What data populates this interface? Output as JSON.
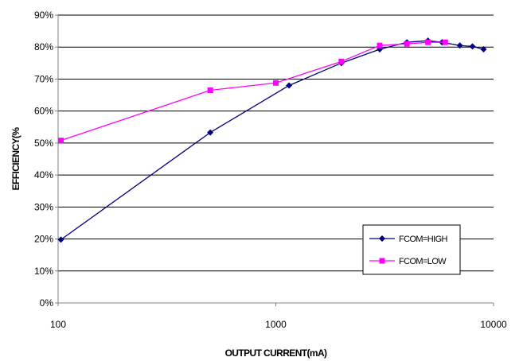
{
  "chart_data": {
    "type": "line",
    "xlabel": "OUTPUT CURRENT(mA)",
    "ylabel": "EFFICIENCY(%",
    "x_scale": "log",
    "xlim": [
      100,
      10000
    ],
    "ylim": [
      0,
      90
    ],
    "x_ticks": [
      "100",
      "1000",
      "10000"
    ],
    "y_ticks": [
      "0%",
      "10%",
      "20%",
      "30%",
      "40%",
      "50%",
      "60%",
      "70%",
      "80%",
      "90%"
    ],
    "grid": "horizontal",
    "legend_position": "bottom-right",
    "series": [
      {
        "name": "FCOM=HIGH",
        "color": "#000080",
        "marker": "diamond",
        "x": [
          103,
          500,
          1150,
          2000,
          3000,
          4000,
          5000,
          5800,
          7000,
          8000,
          9000
        ],
        "y": [
          19.8,
          53.3,
          68,
          75,
          79.3,
          81.5,
          82,
          81.5,
          80.5,
          80.2,
          79.3
        ]
      },
      {
        "name": "FCOM=LOW",
        "color": "#ff00ff",
        "marker": "square",
        "x": [
          103,
          500,
          1000,
          2000,
          3000,
          4000,
          5000,
          6000
        ],
        "y": [
          50.8,
          66.5,
          68.8,
          75.5,
          80.5,
          81,
          81.5,
          81.5
        ]
      }
    ]
  }
}
